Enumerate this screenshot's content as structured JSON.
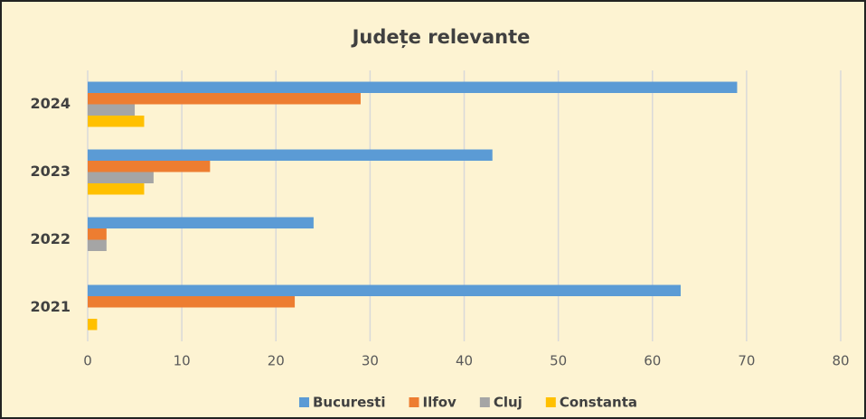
{
  "chart_data": {
    "type": "hbar",
    "title": "Județe relevante",
    "categories": [
      "2021",
      "2022",
      "2023",
      "2024"
    ],
    "series": [
      {
        "name": "Bucuresti",
        "color": "#5b9bd5",
        "values": [
          63,
          24,
          43,
          69
        ]
      },
      {
        "name": "Ilfov",
        "color": "#ed7d31",
        "values": [
          22,
          2,
          13,
          29
        ]
      },
      {
        "name": "Cluj",
        "color": "#a5a5a5",
        "values": [
          0,
          2,
          7,
          5
        ]
      },
      {
        "name": "Constanta",
        "color": "#ffc000",
        "values": [
          1,
          0,
          6,
          6
        ]
      }
    ],
    "xlim": [
      0,
      80
    ],
    "xticks": [
      0,
      10,
      20,
      30,
      40,
      50,
      60,
      70,
      80
    ],
    "grid": true,
    "legend": "bottom"
  }
}
